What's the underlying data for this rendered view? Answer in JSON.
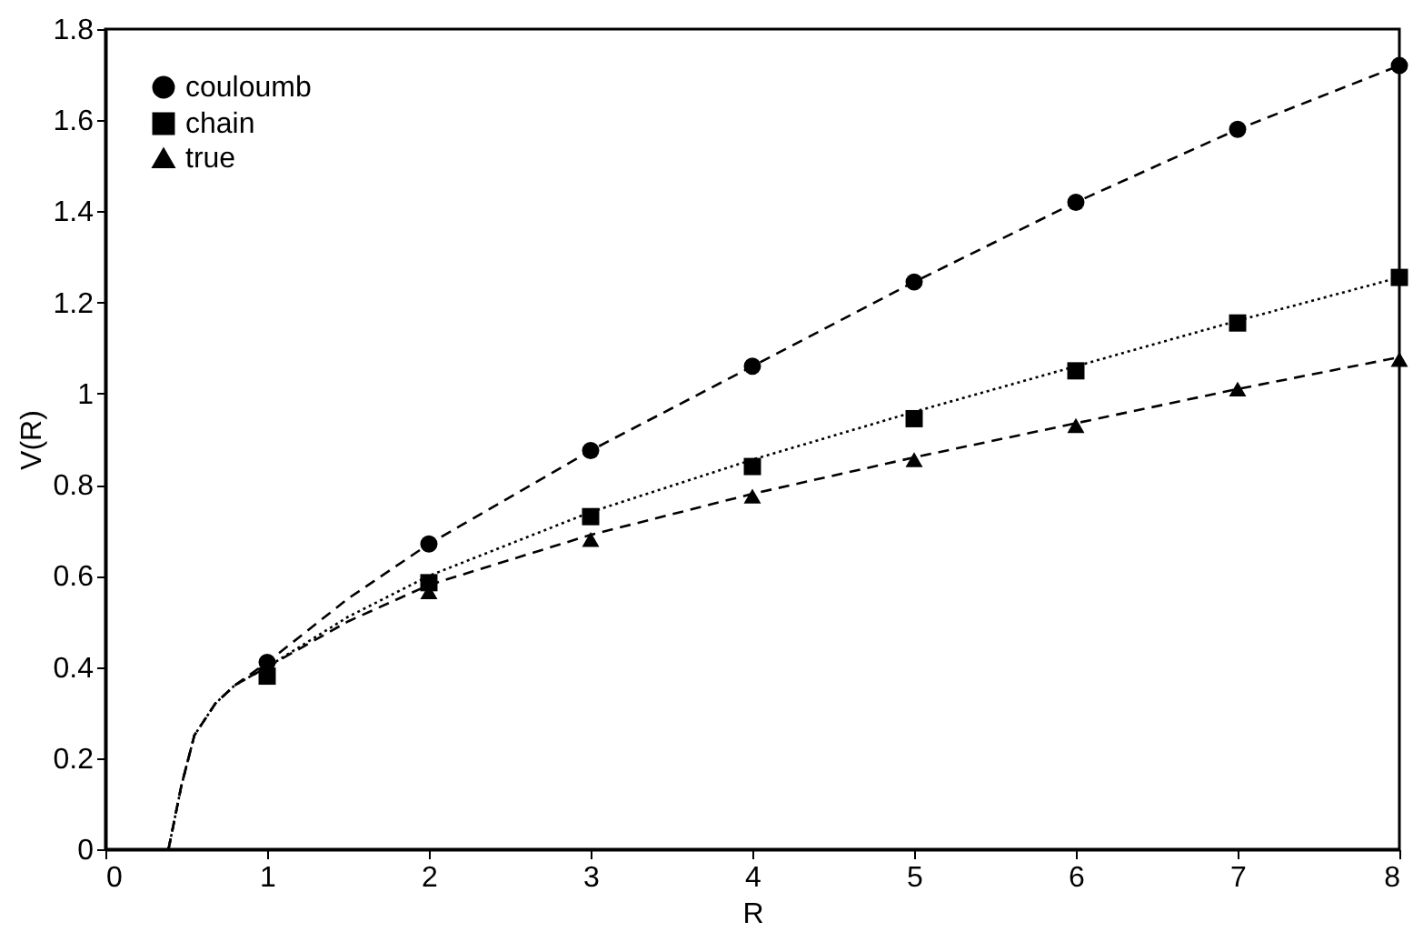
{
  "chart_data": {
    "type": "scatter",
    "xlabel": "R",
    "ylabel": "V(R)",
    "xlim": [
      0,
      8
    ],
    "ylim": [
      0,
      1.8
    ],
    "xticks": [
      0,
      1,
      2,
      3,
      4,
      5,
      6,
      7,
      8
    ],
    "yticks": [
      0,
      0.2,
      0.4,
      0.6,
      0.8,
      1,
      1.2,
      1.4,
      1.6,
      1.8
    ],
    "grid": false,
    "legend": "top left",
    "series": [
      {
        "name": "couloumb",
        "marker": "circle",
        "color": "#000000",
        "x": [
          1,
          2,
          3,
          4,
          5,
          6,
          7,
          8
        ],
        "values": [
          0.41,
          0.67,
          0.875,
          1.06,
          1.245,
          1.42,
          1.58,
          1.72
        ]
      },
      {
        "name": "chain",
        "marker": "square",
        "color": "#000000",
        "x": [
          1,
          2,
          3,
          4,
          5,
          6,
          7,
          8
        ],
        "values": [
          0.38,
          0.585,
          0.73,
          0.84,
          0.945,
          1.05,
          1.155,
          1.255
        ]
      },
      {
        "name": "true",
        "marker": "triangle",
        "color": "#000000",
        "x": [
          2,
          3,
          4,
          5,
          6,
          7,
          8
        ],
        "values": [
          0.565,
          0.68,
          0.775,
          0.855,
          0.93,
          1.01,
          1.075
        ]
      },
      {
        "type": "line",
        "line_style": "dashed",
        "color": "#000000",
        "x": [
          0.39,
          0.47,
          0.55,
          0.68,
          0.8,
          1,
          1.5,
          2,
          3,
          4,
          5,
          6,
          7,
          8
        ],
        "values": [
          0,
          0.14,
          0.25,
          0.32,
          0.36,
          0.41,
          0.55,
          0.67,
          0.875,
          1.06,
          1.245,
          1.42,
          1.58,
          1.72
        ]
      },
      {
        "type": "line",
        "line_style": "dotted",
        "color": "#000000",
        "x": [
          0.39,
          0.47,
          0.55,
          0.68,
          0.8,
          1,
          1.5,
          2,
          3,
          4,
          5,
          6,
          7,
          8
        ],
        "values": [
          0,
          0.14,
          0.25,
          0.32,
          0.36,
          0.4,
          0.51,
          0.6,
          0.74,
          0.855,
          0.96,
          1.06,
          1.16,
          1.255
        ]
      },
      {
        "type": "line",
        "line_style": "dashed",
        "color": "#000000",
        "x": [
          0.39,
          0.47,
          0.55,
          0.68,
          0.8,
          1,
          1.5,
          2,
          3,
          4,
          5,
          6,
          7,
          8
        ],
        "values": [
          0,
          0.14,
          0.25,
          0.32,
          0.36,
          0.4,
          0.5,
          0.58,
          0.69,
          0.78,
          0.86,
          0.935,
          1.01,
          1.08
        ]
      }
    ]
  }
}
